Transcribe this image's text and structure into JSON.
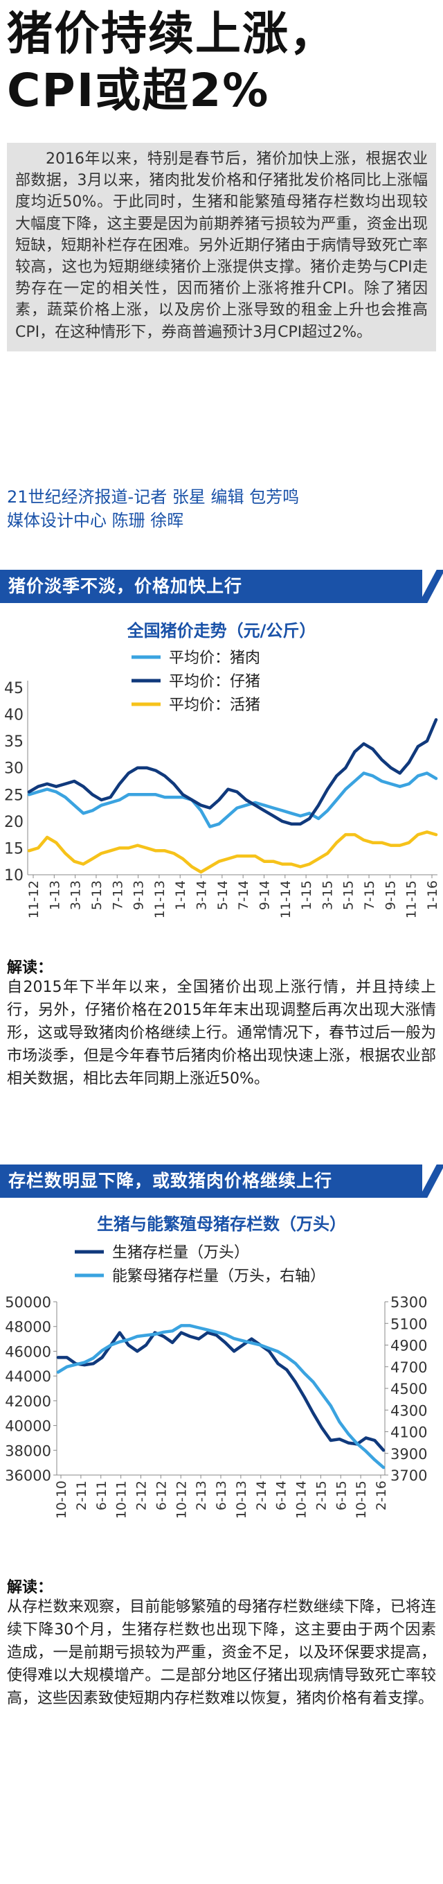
{
  "headline": {
    "line1": "猪价持续上涨，",
    "line2": "CPI或超2%"
  },
  "intro": {
    "text": "2016年以来，特别是春节后，猪价加快上涨，根据农业部数据，3月以来，猪肉批发价格和仔猪批发价格同比上涨幅度均近50%。于此同时，生猪和能繁殖母猪存栏数均出现较大幅度下降，这主要是因为前期养猪亏损较为严重，资金出现短缺，短期补栏存在困难。另外近期仔猪由于病情导致死亡率较高，这也为短期继续猪价上涨提供支撑。猪价走势与CPI走势存在一定的相关性，因而猪价上涨将推升CPI。除了猪因素，蔬菜价格上涨，以及房价上涨导致的租金上升也会推高CPI，在这种情形下，券商普遍预计3月CPI超过2%。"
  },
  "credits": {
    "line1": "21世纪经济报道-记者 张星  编辑 包芳鸣",
    "line2": "媒体设计中心 陈珊 徐晖"
  },
  "section1": {
    "banner": "猪价淡季不淡，价格加快上行",
    "analysis_label": "解读：",
    "analysis_text": "自2015年下半年以来，全国猪价出现上涨行情，并且持续上行，另外，仔猪价格在2015年年末出现调整后再次出现大涨情形，这或导致猪肉价格继续上行。通常情况下，春节过后一般为市场淡季，但是今年春节后猪肉价格出现快速上涨，根据农业部相关数据，相比去年同期上涨近50%。"
  },
  "section2": {
    "banner": "存栏数明显下降，或致猪肉价格继续上行",
    "analysis_label": "解读：",
    "analysis_text": "从存栏数来观察，目前能够繁殖的母猪存栏数继续下降，已将连续下降30个月，生猪存栏数也出现下降，这主要由于两个因素造成，一是前期亏损较为严重，资金不足，以及环保要求提高，使得难以大规模增产。二是部分地区仔猪出现病情导致死亡率较高，这些因素致使短期内存栏数难以恢复，猪肉价格有着支撑。"
  },
  "colors": {
    "brand_blue": "#1a52a8",
    "pork": "#3aa3e0",
    "piglet": "#10397c",
    "live_pig": "#f6c21a",
    "hog_stock": "#10397c",
    "sow_stock": "#3aa3e0"
  },
  "chart_data": [
    {
      "type": "line",
      "title": "全国猪价走势（元/公斤）",
      "ylim": [
        10,
        45
      ],
      "yticks": [
        10,
        15,
        20,
        25,
        30,
        35,
        40,
        45
      ],
      "tick_labels": [
        "11-12",
        "1-13",
        "3-13",
        "5-13",
        "7-13",
        "9-13",
        "11-13",
        "1-14",
        "3-14",
        "5-14",
        "7-14",
        "9-14",
        "11-14",
        "1-15",
        "3-15",
        "5-15",
        "7-15",
        "9-15",
        "11-15",
        "1-16"
      ],
      "series": [
        {
          "name": "平均价：猪肉",
          "color": "#3aa3e0",
          "values": [
            25,
            25.5,
            26,
            25.5,
            24.5,
            23,
            21.5,
            22,
            23,
            23.5,
            24,
            25,
            25,
            25,
            25,
            24.5,
            24.5,
            24.5,
            24,
            22,
            19,
            19.5,
            21,
            22.5,
            23,
            23.5,
            23,
            22.5,
            22,
            21.5,
            21,
            21.5,
            20.5,
            22,
            24,
            26,
            27.5,
            29,
            28.5,
            27.5,
            27,
            26.5,
            27,
            28.5,
            29,
            28
          ]
        },
        {
          "name": "平均价：仔猪",
          "color": "#10397c",
          "values": [
            25.5,
            26.5,
            27,
            26.5,
            27,
            27.5,
            26.5,
            25,
            24,
            24.5,
            27,
            29,
            30,
            30,
            29.5,
            28.5,
            27,
            25,
            24,
            23,
            22.5,
            24,
            26,
            25.5,
            24,
            23,
            22,
            21,
            20,
            19.5,
            19.5,
            20.5,
            23,
            26,
            28.5,
            30,
            33,
            34.5,
            33.5,
            31.5,
            30,
            29,
            31,
            34,
            35,
            39
          ]
        },
        {
          "name": "平均价：活猪",
          "color": "#f6c21a",
          "values": [
            14.5,
            15,
            17,
            16,
            14,
            12.5,
            12,
            13,
            14,
            14.5,
            15,
            15,
            15.5,
            15,
            14.5,
            14.5,
            14,
            13,
            11.5,
            10.5,
            11.5,
            12.5,
            13,
            13.5,
            13.5,
            13.5,
            12.5,
            12.5,
            12,
            12,
            11.5,
            12,
            13,
            14,
            16,
            17.5,
            17.5,
            16.5,
            16,
            16,
            15.5,
            15.5,
            16,
            17.5,
            18,
            17.5
          ]
        }
      ]
    },
    {
      "type": "line",
      "title": "生猪与能繁殖母猪存栏数（万头）",
      "ylim_left": [
        36000,
        50000
      ],
      "yticks_left": [
        36000,
        38000,
        40000,
        42000,
        44000,
        46000,
        48000,
        50000
      ],
      "ylim_right": [
        3700,
        5300
      ],
      "yticks_right": [
        3700,
        3900,
        4100,
        4300,
        4500,
        4700,
        4900,
        5100,
        5300
      ],
      "tick_labels": [
        "10-10",
        "2-11",
        "6-11",
        "10-11",
        "2-12",
        "6-12",
        "10-12",
        "2-13",
        "6-13",
        "10-13",
        "2-14",
        "6-14",
        "10-14",
        "2-15",
        "6-15",
        "10-15",
        "2-16"
      ],
      "series": [
        {
          "name": "生猪存栏量（万头）",
          "color": "#10397c",
          "axis": "left",
          "values": [
            45500,
            45500,
            45000,
            44900,
            45000,
            45500,
            46500,
            47500,
            46500,
            46000,
            46500,
            47500,
            47200,
            46700,
            47500,
            47200,
            47000,
            47500,
            47300,
            46700,
            46000,
            46500,
            47000,
            46500,
            46000,
            45000,
            44500,
            43500,
            42300,
            41000,
            39800,
            38800,
            38900,
            38600,
            38500,
            39000,
            38800,
            38000
          ]
        },
        {
          "name": "能繁母猪存栏量（万头，右轴）",
          "color": "#3aa3e0",
          "axis": "right",
          "values": [
            4650,
            4700,
            4720,
            4740,
            4780,
            4850,
            4900,
            4930,
            4950,
            4980,
            4990,
            5000,
            5020,
            5030,
            5080,
            5080,
            5060,
            5040,
            5020,
            5000,
            4960,
            4940,
            4920,
            4900,
            4870,
            4840,
            4790,
            4730,
            4640,
            4560,
            4450,
            4340,
            4190,
            4080,
            3990,
            3920,
            3840,
            3770
          ]
        }
      ]
    }
  ]
}
